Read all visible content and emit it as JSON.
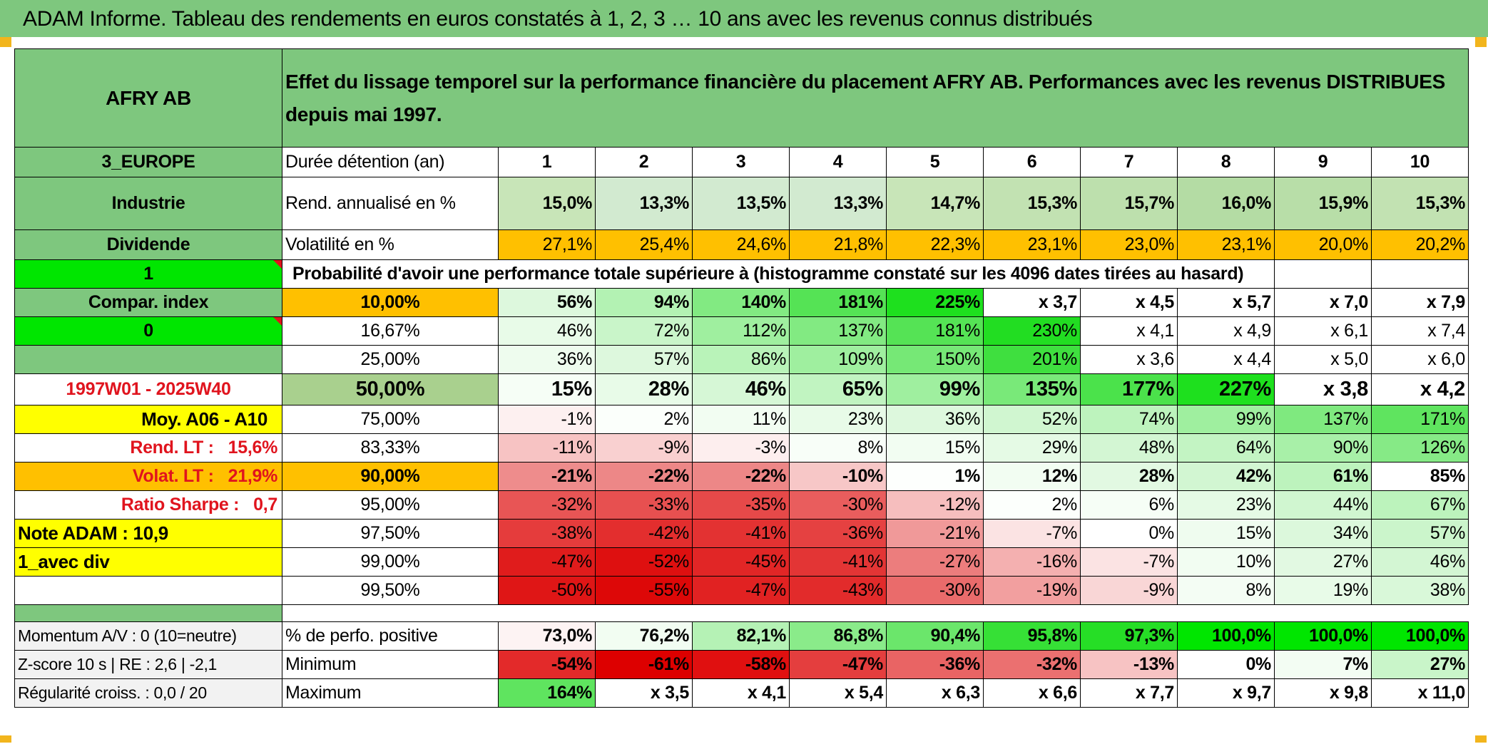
{
  "title": "ADAM Informe. Tableau des rendements en euros constatés à 1, 2, 3 … 10 ans avec les revenus connus distribués",
  "header": {
    "fund": "AFRY AB",
    "description_line1": "Effet du lissage temporel sur la performance financière du placement AFRY AB. Performances avec les revenus DISTRIBUES",
    "description_line2": "depuis mai 1997."
  },
  "side": {
    "region": "3_EUROPE",
    "sector": "Industrie",
    "dividend": "Dividende",
    "flag1": "1",
    "compar": "Compar. index",
    "flag0": "0",
    "period": "1997W01 - 2025W40",
    "moy": "Moy. A06 - A10",
    "rend_label": "Rend. LT :",
    "rend_value": "15,6%",
    "volat_label": "Volat. LT :",
    "volat_value": "21,9%",
    "sharpe_label": "Ratio Sharpe :",
    "sharpe_value": "0,7",
    "note": "Note ADAM : 10,9",
    "div": "1_avec div",
    "momentum": "Momentum A/V : 0 (10=neutre)",
    "zscore": "Z-score 10 s | RE : 2,6 | -2,1",
    "regularite": "Régularité croiss. : 0,0 / 20"
  },
  "labels": {
    "duree": "Durée détention (an)",
    "rend": "Rend. annualisé en %",
    "vol": "Volatilité en %",
    "proba": "Probabilité d'avoir une performance totale supérieure à (histogramme constaté sur les 4096 dates tirées au hasard)",
    "positive": "% de perfo. positive",
    "minimum": "Minimum",
    "maximum": "Maximum"
  },
  "years": [
    "1",
    "2",
    "3",
    "4",
    "5",
    "6",
    "7",
    "8",
    "9",
    "10"
  ],
  "rend": [
    "15,0%",
    "13,3%",
    "13,5%",
    "13,3%",
    "14,7%",
    "15,3%",
    "15,7%",
    "16,0%",
    "15,9%",
    "15,3%"
  ],
  "vol": [
    "27,1%",
    "25,4%",
    "24,6%",
    "21,8%",
    "22,3%",
    "23,1%",
    "23,0%",
    "23,1%",
    "20,0%",
    "20,2%"
  ],
  "prob_rows": [
    {
      "pct": "10,00%",
      "values": [
        "56%",
        "94%",
        "140%",
        "181%",
        "225%",
        "x 3,7",
        "x 4,5",
        "x 5,7",
        "x 7,0",
        "x 7,9"
      ]
    },
    {
      "pct": "16,67%",
      "values": [
        "46%",
        "72%",
        "112%",
        "137%",
        "181%",
        "230%",
        "x 4,1",
        "x 4,9",
        "x 6,1",
        "x 7,4"
      ]
    },
    {
      "pct": "25,00%",
      "values": [
        "36%",
        "57%",
        "86%",
        "109%",
        "150%",
        "201%",
        "x 3,6",
        "x 4,4",
        "x 5,0",
        "x 6,0"
      ]
    },
    {
      "pct": "50,00%",
      "values": [
        "15%",
        "28%",
        "46%",
        "65%",
        "99%",
        "135%",
        "177%",
        "227%",
        "x 3,8",
        "x 4,2"
      ]
    },
    {
      "pct": "75,00%",
      "values": [
        "-1%",
        "2%",
        "11%",
        "23%",
        "36%",
        "52%",
        "74%",
        "99%",
        "137%",
        "171%"
      ]
    },
    {
      "pct": "83,33%",
      "values": [
        "-11%",
        "-9%",
        "-3%",
        "8%",
        "15%",
        "29%",
        "48%",
        "64%",
        "90%",
        "126%"
      ]
    },
    {
      "pct": "90,00%",
      "values": [
        "-21%",
        "-22%",
        "-22%",
        "-10%",
        "1%",
        "12%",
        "28%",
        "42%",
        "61%",
        "85%"
      ]
    },
    {
      "pct": "95,00%",
      "values": [
        "-32%",
        "-33%",
        "-35%",
        "-30%",
        "-12%",
        "2%",
        "6%",
        "23%",
        "44%",
        "67%"
      ]
    },
    {
      "pct": "97,50%",
      "values": [
        "-38%",
        "-42%",
        "-41%",
        "-36%",
        "-21%",
        "-7%",
        "0%",
        "15%",
        "34%",
        "57%"
      ]
    },
    {
      "pct": "99,00%",
      "values": [
        "-47%",
        "-52%",
        "-45%",
        "-41%",
        "-27%",
        "-16%",
        "-7%",
        "10%",
        "27%",
        "46%"
      ]
    },
    {
      "pct": "99,50%",
      "values": [
        "-50%",
        "-55%",
        "-47%",
        "-43%",
        "-30%",
        "-19%",
        "-9%",
        "8%",
        "19%",
        "38%"
      ]
    }
  ],
  "positive": [
    "73,0%",
    "76,2%",
    "82,1%",
    "86,8%",
    "90,4%",
    "95,8%",
    "97,3%",
    "100,0%",
    "100,0%",
    "100,0%"
  ],
  "minimum": [
    "-54%",
    "-61%",
    "-58%",
    "-47%",
    "-36%",
    "-32%",
    "-13%",
    "0%",
    "7%",
    "27%"
  ],
  "maximum": [
    "164%",
    "x 3,5",
    "x 4,1",
    "x 5,4",
    "x 6,3",
    "x 6,6",
    "x 7,7",
    "x 9,7",
    "x 9,8",
    "x 11,0"
  ],
  "colors": {
    "header_green": "#7ec77e",
    "bright_green": "#00e600",
    "orange": "#ffc000",
    "yellow": "#ffff00",
    "red_text": "#e0141e"
  }
}
